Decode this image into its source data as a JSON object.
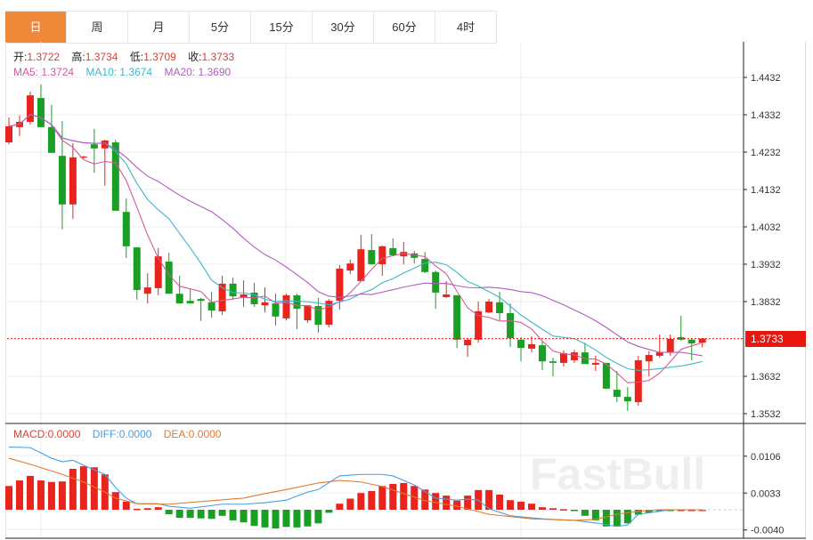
{
  "tabs": [
    {
      "label": "日",
      "active": true
    },
    {
      "label": "周",
      "active": false
    },
    {
      "label": "月",
      "active": false
    },
    {
      "label": "5分",
      "active": false
    },
    {
      "label": "15分",
      "active": false
    },
    {
      "label": "30分",
      "active": false
    },
    {
      "label": "60分",
      "active": false
    },
    {
      "label": "4时",
      "active": false
    }
  ],
  "ohlc": {
    "open_label": "开:",
    "open": "1.3722",
    "high_label": "高:",
    "high": "1.3734",
    "low_label": "低:",
    "low": "1.3709",
    "close_label": "收:",
    "close": "1.3733"
  },
  "ma": {
    "ma5": "MA5: 1.3724",
    "ma10": "MA10: 1.3674",
    "ma20": "MA20: 1.3690"
  },
  "macd_info": {
    "macd": "MACD:0.0000",
    "diff": "DIFF:0.0000",
    "dea": "DEA:0.0000"
  },
  "current_price": "1.3733",
  "watermark": "FastBull",
  "colors": {
    "up": "#e8241c",
    "down": "#1a9e24",
    "ma5": "#d45a9c",
    "ma10": "#3cb8c8",
    "ma20": "#b05cc0",
    "diff": "#4a9ee0",
    "dea": "#e07a30",
    "accent": "#f0883a"
  },
  "chart_data": [
    {
      "type": "candlestick",
      "y_ticks": [
        "1.4432",
        "1.4332",
        "1.4232",
        "1.4132",
        "1.4032",
        "1.3932",
        "1.3832",
        "1.3632",
        "1.3532"
      ],
      "ylim": [
        1.3532,
        1.4432
      ],
      "candles": [
        [
          1.4258,
          1.4325,
          1.4253,
          1.4301
        ],
        [
          1.4299,
          1.433,
          1.4275,
          1.4313
        ],
        [
          1.4313,
          1.4394,
          1.4306,
          1.4384
        ],
        [
          1.4377,
          1.4413,
          1.4299,
          1.4299
        ],
        [
          1.4299,
          1.4358,
          1.423,
          1.423
        ],
        [
          1.4222,
          1.4315,
          1.4025,
          1.4092
        ],
        [
          1.4092,
          1.4256,
          1.4053,
          1.4218
        ],
        [
          1.4218,
          1.4222,
          1.4215,
          1.422
        ],
        [
          1.4253,
          1.4294,
          1.4177,
          1.4242
        ],
        [
          1.4242,
          1.4265,
          1.4142,
          1.4263
        ],
        [
          1.4258,
          1.4265,
          1.4075,
          1.4075
        ],
        [
          1.4072,
          1.4108,
          1.3949,
          1.398
        ],
        [
          1.3977,
          1.3977,
          1.3837,
          1.3863
        ],
        [
          1.3853,
          1.3908,
          1.3827,
          1.387
        ],
        [
          1.3868,
          1.3975,
          1.3849,
          1.3953
        ],
        [
          1.3939,
          1.3963,
          1.3853,
          1.3853
        ],
        [
          1.3853,
          1.3901,
          1.3827,
          1.3827
        ],
        [
          1.3834,
          1.3865,
          1.3827,
          1.3827
        ],
        [
          1.3839,
          1.3842,
          1.378,
          1.3834
        ],
        [
          1.383,
          1.3858,
          1.3789,
          1.3808
        ],
        [
          1.3806,
          1.3901,
          1.3796,
          1.388
        ],
        [
          1.388,
          1.3896,
          1.3837,
          1.3846
        ],
        [
          1.3842,
          1.3889,
          1.3818,
          1.3851
        ],
        [
          1.3856,
          1.3882,
          1.3818,
          1.3825
        ],
        [
          1.3822,
          1.387,
          1.3803,
          1.383
        ],
        [
          1.3827,
          1.3853,
          1.3768,
          1.3792
        ],
        [
          1.3787,
          1.3853,
          1.3782,
          1.3849
        ],
        [
          1.3849,
          1.3853,
          1.3758,
          1.3813
        ],
        [
          1.3782,
          1.3822,
          1.3775,
          1.3822
        ],
        [
          1.382,
          1.3842,
          1.3749,
          1.377
        ],
        [
          1.377,
          1.3839,
          1.3763,
          1.3834
        ],
        [
          1.3834,
          1.393,
          1.3811,
          1.392
        ],
        [
          1.3915,
          1.3944,
          1.3906,
          1.3934
        ],
        [
          1.3887,
          1.4011,
          1.3887,
          1.3972
        ],
        [
          1.397,
          1.4013,
          1.393,
          1.3932
        ],
        [
          1.3932,
          1.3982,
          1.3901,
          1.398
        ],
        [
          1.3975,
          1.4001,
          1.3956,
          1.3956
        ],
        [
          1.3953,
          1.3992,
          1.3932,
          1.3965
        ],
        [
          1.3961,
          1.3968,
          1.3934,
          1.3949
        ],
        [
          1.3946,
          1.3965,
          1.3908,
          1.3911
        ],
        [
          1.3911,
          1.3915,
          1.3813,
          1.3856
        ],
        [
          1.3844,
          1.3887,
          1.3842,
          1.3851
        ],
        [
          1.3849,
          1.3849,
          1.3708,
          1.373
        ],
        [
          1.3715,
          1.3734,
          1.3684,
          1.373
        ],
        [
          1.373,
          1.3832,
          1.3722,
          1.3806
        ],
        [
          1.3803,
          1.3839,
          1.3801,
          1.3832
        ],
        [
          1.383,
          1.3858,
          1.3782,
          1.3801
        ],
        [
          1.3801,
          1.3827,
          1.3711,
          1.3734
        ],
        [
          1.373,
          1.3737,
          1.3672,
          1.3708
        ],
        [
          1.3706,
          1.3739,
          1.3696,
          1.3718
        ],
        [
          1.3715,
          1.3725,
          1.3649,
          1.3672
        ],
        [
          1.3672,
          1.3682,
          1.3632,
          1.3668
        ],
        [
          1.3668,
          1.3701,
          1.3658,
          1.3694
        ],
        [
          1.3675,
          1.3703,
          1.3668,
          1.3696
        ],
        [
          1.3696,
          1.3722,
          1.3665,
          1.3665
        ],
        [
          1.3663,
          1.3687,
          1.3646,
          1.3668
        ],
        [
          1.3668,
          1.3668,
          1.3599,
          1.3599
        ],
        [
          1.3596,
          1.3646,
          1.3563,
          1.3577
        ],
        [
          1.3577,
          1.3603,
          1.3539,
          1.3565
        ],
        [
          1.3563,
          1.3687,
          1.3553,
          1.3675
        ],
        [
          1.3672,
          1.3699,
          1.3632,
          1.3689
        ],
        [
          1.3687,
          1.3744,
          1.3682,
          1.3696
        ],
        [
          1.3696,
          1.3744,
          1.3687,
          1.3732
        ],
        [
          1.3737,
          1.3794,
          1.3727,
          1.373
        ],
        [
          1.373,
          1.3734,
          1.3675,
          1.372
        ],
        [
          1.3722,
          1.3734,
          1.3709,
          1.3733
        ]
      ],
      "moving_averages": [
        "MA5",
        "MA10",
        "MA20"
      ]
    },
    {
      "type": "bar",
      "name": "MACD",
      "y_ticks": [
        "0.0106",
        "0.0033",
        "-0.0040"
      ],
      "ylim": [
        -0.0045,
        0.014
      ],
      "histogram": [
        0.0047,
        0.0058,
        0.0067,
        0.0058,
        0.0055,
        0.0056,
        0.0081,
        0.0086,
        0.0084,
        0.007,
        0.0035,
        0.0016,
        0.0002,
        0.0003,
        0.0005,
        -0.0009,
        -0.0016,
        -0.0016,
        -0.0017,
        -0.0018,
        -0.0012,
        -0.0021,
        -0.0025,
        -0.0032,
        -0.0035,
        -0.0037,
        -0.0034,
        -0.0035,
        -0.0033,
        -0.0027,
        -0.0006,
        0.0012,
        0.0022,
        0.0033,
        0.0037,
        0.0047,
        0.0051,
        0.0053,
        0.0047,
        0.004,
        0.0033,
        0.0028,
        0.0018,
        0.0028,
        0.0039,
        0.0039,
        0.003,
        0.0019,
        0.0016,
        0.0012,
        0.0005,
        0.0003,
        0.0001,
        -0.0001,
        -0.0012,
        -0.0021,
        -0.0033,
        -0.0033,
        -0.0027,
        -0.001,
        -0.0006,
        -0.0002,
        -0.0001,
        0.0,
        0.0,
        0.0
      ],
      "diff": [
        [
          0,
          0.0124
        ],
        [
          2,
          0.0123
        ],
        [
          4,
          0.0102
        ],
        [
          5,
          0.0095
        ],
        [
          6,
          0.0098
        ],
        [
          7,
          0.0088
        ],
        [
          9,
          0.007
        ],
        [
          10,
          0.0044
        ],
        [
          11,
          0.0023
        ],
        [
          12,
          0.0012
        ],
        [
          14,
          0.0012
        ],
        [
          15,
          0.0007
        ],
        [
          17,
          0.0003
        ],
        [
          20,
          0.0011
        ],
        [
          22,
          0.0011
        ],
        [
          24,
          0.0014
        ],
        [
          26,
          0.0019
        ],
        [
          28,
          0.0035
        ],
        [
          29,
          0.004
        ],
        [
          31,
          0.0067
        ],
        [
          33,
          0.007
        ],
        [
          35,
          0.007
        ],
        [
          36,
          0.0067
        ],
        [
          38,
          0.0049
        ],
        [
          40,
          0.0023
        ],
        [
          42,
          0.0019
        ],
        [
          43,
          0.0021
        ],
        [
          44,
          0.0019
        ],
        [
          45,
          0.0002
        ],
        [
          47,
          -0.0012
        ],
        [
          50,
          -0.0018
        ],
        [
          53,
          -0.0021
        ],
        [
          55,
          -0.0026
        ],
        [
          57,
          -0.0033
        ],
        [
          58,
          -0.003
        ],
        [
          59,
          -0.0009
        ],
        [
          61,
          -0.0003
        ],
        [
          62,
          0.0
        ],
        [
          65,
          0.0
        ]
      ],
      "dea": [
        [
          0,
          0.0102
        ],
        [
          2,
          0.009
        ],
        [
          5,
          0.007
        ],
        [
          7,
          0.0055
        ],
        [
          9,
          0.0035
        ],
        [
          10,
          0.0023
        ],
        [
          12,
          0.0012
        ],
        [
          15,
          0.0011
        ],
        [
          19,
          0.0018
        ],
        [
          22,
          0.0023
        ],
        [
          24,
          0.0032
        ],
        [
          26,
          0.004
        ],
        [
          29,
          0.0053
        ],
        [
          31,
          0.0058
        ],
        [
          33,
          0.0055
        ],
        [
          35,
          0.0046
        ],
        [
          37,
          0.0032
        ],
        [
          39,
          0.0018
        ],
        [
          42,
          0.0007
        ],
        [
          45,
          -0.0009
        ],
        [
          49,
          -0.0018
        ],
        [
          53,
          -0.0021
        ],
        [
          55,
          -0.0019
        ],
        [
          57,
          -0.0009
        ],
        [
          59,
          -0.0003
        ],
        [
          61,
          0.0
        ],
        [
          65,
          0.0
        ]
      ]
    }
  ]
}
